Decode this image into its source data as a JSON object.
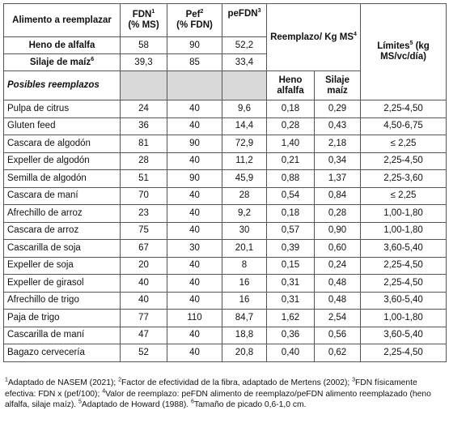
{
  "header": {
    "col_alimento": "Alimento a reemplazar",
    "col_fdn": "FDN",
    "col_fdn_sup": "1",
    "col_fdn_unit": "(% MS)",
    "col_pef": "Pef",
    "col_pef_sup": "2",
    "col_pef_unit": "(% FDN)",
    "col_pefdn": "peFDN",
    "col_pefdn_sup": "3",
    "col_reemplazo": "Reemplazo/ Kg MS",
    "col_reemplazo_sup": "4",
    "col_limites": "Límites",
    "col_limites_sup": "5",
    "col_limites_unit": "(kg MS/vc/día)",
    "sub_heno": "Heno alfalfa",
    "sub_silaje": "Silaje maíz"
  },
  "base_rows": [
    {
      "name": "Heno de alfalfa",
      "sup": "",
      "fdn": "58",
      "pef": "90",
      "pefdn": "52,2"
    },
    {
      "name": "Silaje de maíz",
      "sup": "6",
      "fdn": "39,3",
      "pef": "85",
      "pefdn": "33,4"
    }
  ],
  "section_label": "Posibles reemplazos",
  "rows": [
    {
      "name": "Pulpa de citrus",
      "fdn": "24",
      "pef": "40",
      "pefdn": "9,6",
      "heno": "0,18",
      "silaje": "0,29",
      "lim": "2,25-4,50"
    },
    {
      "name": "Gluten feed",
      "fdn": "36",
      "pef": "40",
      "pefdn": "14,4",
      "heno": "0,28",
      "silaje": "0,43",
      "lim": "4,50-6,75"
    },
    {
      "name": "Cascara de algodón",
      "fdn": "81",
      "pef": "90",
      "pefdn": "72,9",
      "heno": "1,40",
      "silaje": "2,18",
      "lim": "≤ 2,25"
    },
    {
      "name": "Expeller de algodón",
      "fdn": "28",
      "pef": "40",
      "pefdn": "11,2",
      "heno": "0,21",
      "silaje": "0,34",
      "lim": "2,25-4,50"
    },
    {
      "name": "Semilla de algodón",
      "fdn": "51",
      "pef": "90",
      "pefdn": "45,9",
      "heno": "0,88",
      "silaje": "1,37",
      "lim": "2,25-3,60"
    },
    {
      "name": "Cascara de maní",
      "fdn": "70",
      "pef": "40",
      "pefdn": "28",
      "heno": "0,54",
      "silaje": "0,84",
      "lim": "≤ 2,25"
    },
    {
      "name": "Afrechillo de arroz",
      "fdn": "23",
      "pef": "40",
      "pefdn": "9,2",
      "heno": "0,18",
      "silaje": "0,28",
      "lim": "1,00-1,80"
    },
    {
      "name": "Cascara de arroz",
      "fdn": "75",
      "pef": "40",
      "pefdn": "30",
      "heno": "0,57",
      "silaje": "0,90",
      "lim": "1,00-1,80"
    },
    {
      "name": "Cascarilla de soja",
      "fdn": "67",
      "pef": "30",
      "pefdn": "20,1",
      "heno": "0,39",
      "silaje": "0,60",
      "lim": "3,60-5,40"
    },
    {
      "name": "Expeller de soja",
      "fdn": "20",
      "pef": "40",
      "pefdn": "8",
      "heno": "0,15",
      "silaje": "0,24",
      "lim": "2,25-4,50"
    },
    {
      "name": "Expeller de girasol",
      "fdn": "40",
      "pef": "40",
      "pefdn": "16",
      "heno": "0,31",
      "silaje": "0,48",
      "lim": "2,25-4,50"
    },
    {
      "name": "Afrechillo de trigo",
      "fdn": "40",
      "pef": "40",
      "pefdn": "16",
      "heno": "0,31",
      "silaje": "0,48",
      "lim": "3,60-5,40"
    },
    {
      "name": "Paja de trigo",
      "fdn": "77",
      "pef": "110",
      "pefdn": "84,7",
      "heno": "1,62",
      "silaje": "2,54",
      "lim": "1,00-1,80"
    },
    {
      "name": "Cascarilla de maní",
      "fdn": "47",
      "pef": "40",
      "pefdn": "18,8",
      "heno": "0,36",
      "silaje": "0,56",
      "lim": "3,60-5,40"
    },
    {
      "name": "Bagazo cervecería",
      "fdn": "52",
      "pef": "40",
      "pefdn": "20,8",
      "heno": "0,40",
      "silaje": "0,62",
      "lim": "2,25-4,50"
    }
  ],
  "footnote": {
    "s1": "1",
    "t1": "Adaptado de NASEM (2021); ",
    "s2": "2",
    "t2": "Factor de efectividad de la fibra, adaptado de Mertens (2002); ",
    "s3": "3",
    "t3": "FDN físicamente efectiva: FDN x (pef/100); ",
    "s4": "4",
    "t4": "Valor de reemplazo: peFDN alimento de reemplazo/peFDN alimento reemplazado (heno alfalfa, silaje maíz). ",
    "s5": "5",
    "t5": "Adaptado de Howard (1988). ",
    "s6": "6",
    "t6": "Tamaño de picado 0,6-1,0 cm."
  }
}
